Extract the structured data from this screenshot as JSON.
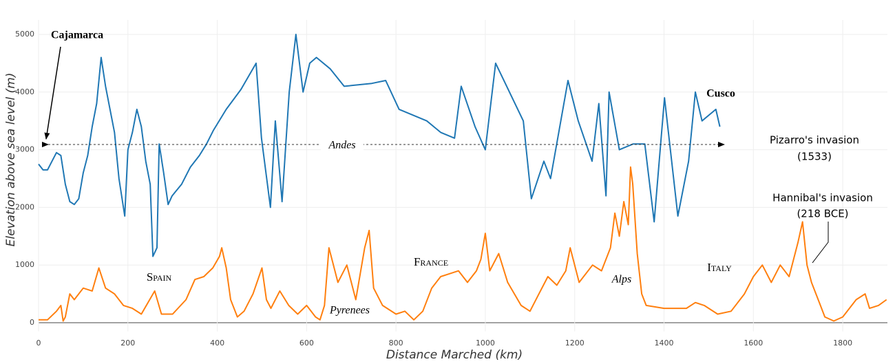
{
  "chart_data": {
    "type": "line",
    "xlabel": "Distance Marched (km)",
    "ylabel": "Elevation above sea level (m)",
    "xlim": [
      0,
      1900
    ],
    "xticks": [
      0,
      200,
      400,
      600,
      800,
      1000,
      1200,
      1400,
      1600,
      1800
    ],
    "ylim": [
      -150,
      5250
    ],
    "yticks": [
      0,
      1000,
      2000,
      3000,
      4000,
      5000
    ],
    "grid": true,
    "zeroline": true,
    "series": [
      {
        "color": "#1f77b4",
        "x": [
          0,
          10,
          20,
          30,
          40,
          50,
          60,
          70,
          80,
          90,
          100,
          110,
          120,
          130,
          140,
          150,
          160,
          170,
          180,
          193,
          200,
          210,
          220,
          230,
          240,
          250,
          256,
          265,
          270,
          280,
          290,
          299,
          320,
          340,
          360,
          376,
          391,
          420,
          453,
          487,
          499,
          519,
          530,
          545,
          561,
          576,
          592,
          607,
          622,
          653,
          684,
          746,
          777,
          807,
          838,
          869,
          900,
          931,
          946,
          977,
          1000,
          1023,
          1054,
          1085,
          1103,
          1131,
          1146,
          1185,
          1208,
          1239,
          1254,
          1270,
          1277,
          1300,
          1331,
          1357,
          1378,
          1401,
          1431,
          1455,
          1470,
          1485,
          1516,
          1525
        ],
        "values": [
          2750,
          2650,
          2650,
          2800,
          2950,
          2900,
          2400,
          2100,
          2050,
          2150,
          2600,
          2900,
          3400,
          3800,
          4600,
          4100,
          3700,
          3300,
          2500,
          1850,
          3000,
          3300,
          3700,
          3400,
          2800,
          2400,
          1150,
          1300,
          3100,
          2600,
          2050,
          2200,
          2400,
          2700,
          2900,
          3100,
          3330,
          3700,
          4045,
          4500,
          3200,
          2000,
          3500,
          2100,
          4000,
          5000,
          4000,
          4500,
          4600,
          4400,
          4100,
          4150,
          4200,
          3700,
          3600,
          3500,
          3300,
          3200,
          4100,
          3400,
          3000,
          4500,
          4000,
          3500,
          2150,
          2800,
          2500,
          4200,
          3500,
          2800,
          3800,
          2200,
          4000,
          3000,
          3100,
          3100,
          1750,
          3900,
          1850,
          2800,
          4000,
          3500,
          3700,
          3400
        ]
      },
      {
        "color": "#ff7f0e",
        "x": [
          0,
          20,
          40,
          50,
          55,
          60,
          70,
          80,
          100,
          120,
          135,
          150,
          170,
          190,
          210,
          230,
          260,
          275,
          300,
          330,
          350,
          370,
          390,
          405,
          410,
          420,
          430,
          445,
          460,
          480,
          500,
          510,
          520,
          540,
          560,
          580,
          600,
          620,
          630,
          640,
          650,
          660,
          670,
          690,
          710,
          730,
          740,
          750,
          770,
          800,
          820,
          840,
          860,
          880,
          900,
          920,
          940,
          960,
          980,
          990,
          1000,
          1010,
          1030,
          1050,
          1080,
          1100,
          1120,
          1140,
          1160,
          1180,
          1190,
          1210,
          1240,
          1260,
          1280,
          1290,
          1300,
          1310,
          1320,
          1325,
          1330,
          1340,
          1350,
          1360,
          1400,
          1450,
          1470,
          1490,
          1520,
          1550,
          1580,
          1600,
          1620,
          1640,
          1660,
          1680,
          1700,
          1710,
          1720,
          1730,
          1750,
          1760,
          1780,
          1800,
          1810,
          1830,
          1850,
          1860,
          1880,
          1898
        ],
        "values": [
          50,
          50,
          200,
          300,
          30,
          100,
          500,
          400,
          600,
          550,
          950,
          600,
          500,
          300,
          250,
          150,
          550,
          150,
          150,
          400,
          750,
          800,
          950,
          1150,
          1300,
          950,
          400,
          100,
          200,
          500,
          950,
          400,
          250,
          550,
          300,
          150,
          300,
          100,
          50,
          300,
          1300,
          1000,
          700,
          1000,
          400,
          1300,
          1600,
          600,
          300,
          150,
          200,
          50,
          200,
          600,
          800,
          850,
          900,
          700,
          900,
          1100,
          1550,
          900,
          1200,
          700,
          300,
          200,
          500,
          800,
          650,
          900,
          1300,
          700,
          1000,
          900,
          1300,
          1900,
          1500,
          2100,
          1700,
          2700,
          2400,
          1200,
          500,
          300,
          250,
          250,
          350,
          300,
          150,
          200,
          500,
          800,
          1000,
          700,
          1000,
          800,
          1400,
          1750,
          1000,
          700,
          300,
          100,
          30,
          100,
          200,
          400,
          500,
          250,
          300,
          400
        ]
      }
    ],
    "annotations": [
      {
        "lines": [
          "Cajamarca"
        ]
      },
      {
        "lines": [
          "Cusco"
        ]
      },
      {
        "lines": [
          "Andes"
        ]
      },
      {
        "lines": [
          "Pizarro's invasion",
          "(1533)"
        ]
      },
      {
        "lines": [
          "Hannibal's invasion",
          "(218 BCE)"
        ]
      },
      {
        "lines": [
          "Spain"
        ]
      },
      {
        "lines": [
          "France"
        ]
      },
      {
        "lines": [
          "Italy"
        ]
      },
      {
        "lines": [
          "Pyrenees"
        ]
      },
      {
        "lines": [
          "Alps"
        ]
      }
    ]
  }
}
